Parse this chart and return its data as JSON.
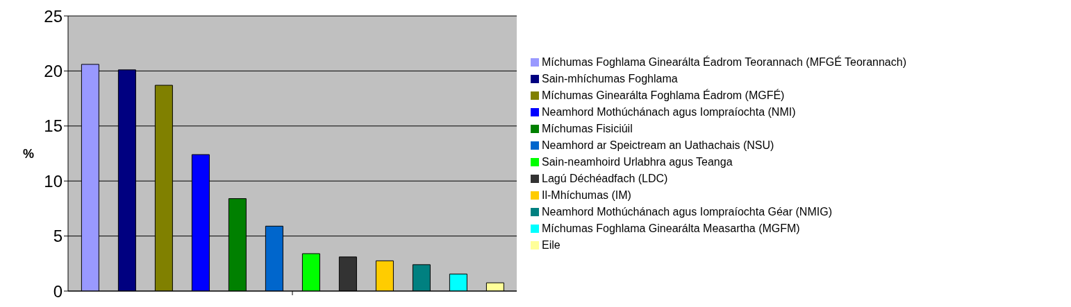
{
  "chart_data": {
    "type": "bar",
    "ylabel": "%",
    "categories": [
      null
    ],
    "series": [
      {
        "name": "Míchumas Foghlama Ginearálta Éadrom Teorannach (MFGÉ Teorannach)",
        "color": "#9999ff",
        "values": [
          20.6
        ]
      },
      {
        "name": "Sain-mhíchumas Foghlama",
        "color": "#000080",
        "values": [
          20.1
        ]
      },
      {
        "name": "Míchumas Ginearálta Foghlama Éadrom (MGFÉ)",
        "color": "#808000",
        "values": [
          18.7
        ]
      },
      {
        "name": "Neamhord Mothúchánach agus Iompraíochta (NMI)",
        "color": "#0000ff",
        "values": [
          12.4
        ]
      },
      {
        "name": "Míchumas Fisiciúil",
        "color": "#008000",
        "values": [
          8.4
        ]
      },
      {
        "name": "Neamhord ar Speictream an Uathachais (NSU)",
        "color": "#0066cc",
        "values": [
          5.9
        ]
      },
      {
        "name": "Sain-neamhoird Urlabhra agus Teanga",
        "color": "#00ff00",
        "values": [
          3.4
        ]
      },
      {
        "name": "Lagú Déchéadfach (LDC)",
        "color": "#333333",
        "values": [
          3.1
        ]
      },
      {
        "name": "Il-Mhíchumas (IM)",
        "color": "#ffcc00",
        "values": [
          2.75
        ]
      },
      {
        "name": "Neamhord Mothúchánach agus Iompraíochta Géar (NMIG)",
        "color": "#008080",
        "values": [
          2.4
        ]
      },
      {
        "name": "Míchumas Foghlama Ginearálta Measartha (MGFM)",
        "color": "#00ffff",
        "values": [
          1.55
        ]
      },
      {
        "name": "Eile",
        "color": "#ffff99",
        "values": [
          0.75
        ]
      }
    ],
    "ylim": [
      0,
      25
    ],
    "yticks": [
      0,
      5,
      10,
      15,
      20,
      25
    ],
    "grid": "y",
    "legend": "right"
  }
}
